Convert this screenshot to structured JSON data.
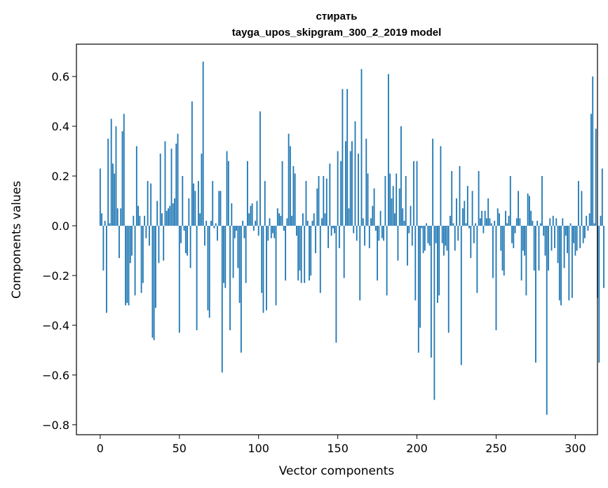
{
  "chart_data": {
    "type": "bar",
    "title": "стирать",
    "subtitle": "tayga_upos_skipgram_300_2_2019 model",
    "xlabel": "Vector components",
    "ylabel": "Components values",
    "xlim": [
      -15,
      314
    ],
    "ylim": [
      -0.84,
      0.73
    ],
    "x_ticks": [
      0,
      50,
      100,
      150,
      200,
      250,
      300
    ],
    "y_ticks": [
      -0.8,
      -0.6,
      -0.4,
      -0.2,
      0.0,
      0.2,
      0.4,
      0.6
    ],
    "y_tick_labels": [
      "−0.8",
      "−0.6",
      "−0.4",
      "−0.2",
      "0.0",
      "0.2",
      "0.4",
      "0.6"
    ],
    "bar_color": "#1f77b4",
    "values": [
      0.23,
      0.05,
      -0.18,
      0.02,
      -0.35,
      0.35,
      0.01,
      0.43,
      0.25,
      0.21,
      0.4,
      0.07,
      -0.13,
      0.07,
      0.38,
      0.45,
      -0.32,
      -0.31,
      -0.32,
      -0.15,
      -0.12,
      0.04,
      -0.28,
      0.32,
      0.08,
      0.04,
      -0.27,
      -0.23,
      0.04,
      -0.05,
      0.18,
      -0.08,
      0.17,
      -0.45,
      -0.46,
      -0.33,
      0.1,
      -0.15,
      0.29,
      0.05,
      -0.14,
      0.34,
      0.06,
      0.07,
      0.08,
      0.31,
      0.09,
      0.11,
      0.33,
      0.37,
      -0.43,
      -0.07,
      0.2,
      -0.02,
      -0.11,
      -0.12,
      0.11,
      -0.17,
      0.5,
      0.17,
      0.14,
      -0.42,
      0.18,
      0.05,
      0.29,
      0.66,
      -0.08,
      0.02,
      -0.34,
      -0.37,
      0.02,
      0.18,
      -0.01,
      0.01,
      -0.06,
      0.14,
      0.14,
      -0.59,
      -0.23,
      -0.25,
      0.3,
      0.26,
      -0.42,
      0.09,
      -0.21,
      -0.05,
      -0.02,
      -0.17,
      -0.31,
      -0.51,
      0.02,
      -0.05,
      -0.23,
      0.26,
      0.05,
      0.08,
      0.09,
      -0.02,
      0.02,
      0.1,
      -0.04,
      0.46,
      -0.27,
      -0.35,
      0.18,
      -0.34,
      -0.06,
      0.03,
      -0.05,
      -0.03,
      -0.05,
      -0.32,
      0.07,
      0.05,
      0.04,
      0.26,
      -0.02,
      -0.22,
      0.03,
      0.37,
      0.32,
      0.04,
      0.24,
      0.21,
      -0.04,
      -0.22,
      -0.18,
      -0.23,
      0.05,
      -0.23,
      0.18,
      0.02,
      -0.22,
      -0.2,
      0.02,
      0.05,
      -0.11,
      0.15,
      0.2,
      -0.27,
      0.03,
      0.2,
      0.05,
      0.19,
      -0.09,
      0.25,
      -0.04,
      -0.01,
      -0.03,
      -0.47,
      0.3,
      -0.09,
      0.26,
      0.55,
      -0.21,
      0.34,
      0.55,
      0.07,
      0.3,
      0.34,
      -0.03,
      0.42,
      -0.06,
      0.29,
      -0.3,
      0.63,
      0.03,
      -0.08,
      0.35,
      0.21,
      -0.09,
      0.03,
      0.08,
      0.15,
      -0.02,
      -0.22,
      -0.06,
      0.06,
      -0.05,
      -0.06,
      0.2,
      -0.28,
      0.61,
      0.21,
      0.11,
      0.16,
      0.05,
      0.21,
      -0.14,
      0.15,
      0.4,
      0.07,
      0.02,
      0.2,
      -0.16,
      -0.03,
      0.08,
      -0.08,
      0.26,
      -0.3,
      0.26,
      -0.51,
      -0.41,
      -0.01,
      -0.11,
      -0.1,
      0.01,
      -0.07,
      -0.08,
      -0.53,
      0.35,
      -0.7,
      -0.07,
      -0.31,
      -0.28,
      0.32,
      -0.07,
      -0.12,
      -0.08,
      -0.1,
      -0.43,
      0.04,
      0.22,
      0.01,
      -0.1,
      0.11,
      -0.06,
      0.24,
      -0.56,
      0.07,
      0.1,
      0.01,
      0.16,
      -0.01,
      -0.13,
      0.14,
      -0.07,
      0.01,
      -0.27,
      0.22,
      0.03,
      0.06,
      -0.03,
      0.06,
      0.03,
      0.11,
      0.03,
      0.01,
      -0.21,
      0.02,
      -0.42,
      0.07,
      0.05,
      -0.1,
      -0.18,
      -0.2,
      0.06,
      0.01,
      0.04,
      0.2,
      -0.07,
      -0.09,
      -0.03,
      0.03,
      0.14,
      0.03,
      -0.22,
      -0.1,
      -0.12,
      -0.28,
      0.13,
      0.12,
      0.06,
      0.02,
      -0.18,
      -0.55,
      0.02,
      -0.18,
      0.01,
      0.2,
      -0.04,
      -0.12,
      -0.76,
      -0.18,
      0.03,
      -0.1,
      0.04,
      -0.09,
      0.03,
      -0.15,
      -0.3,
      -0.32,
      0.03,
      -0.17,
      -0.04,
      -0.11,
      -0.3,
      0.01,
      -0.29,
      -0.07,
      -0.12,
      -0.1,
      0.18,
      -0.09,
      0.14,
      -0.07,
      -0.05,
      0.04,
      -0.02,
      0.05,
      0.45,
      0.6,
      0.01,
      0.39,
      -0.29,
      -0.55,
      0.04,
      0.23,
      -0.25
    ]
  }
}
